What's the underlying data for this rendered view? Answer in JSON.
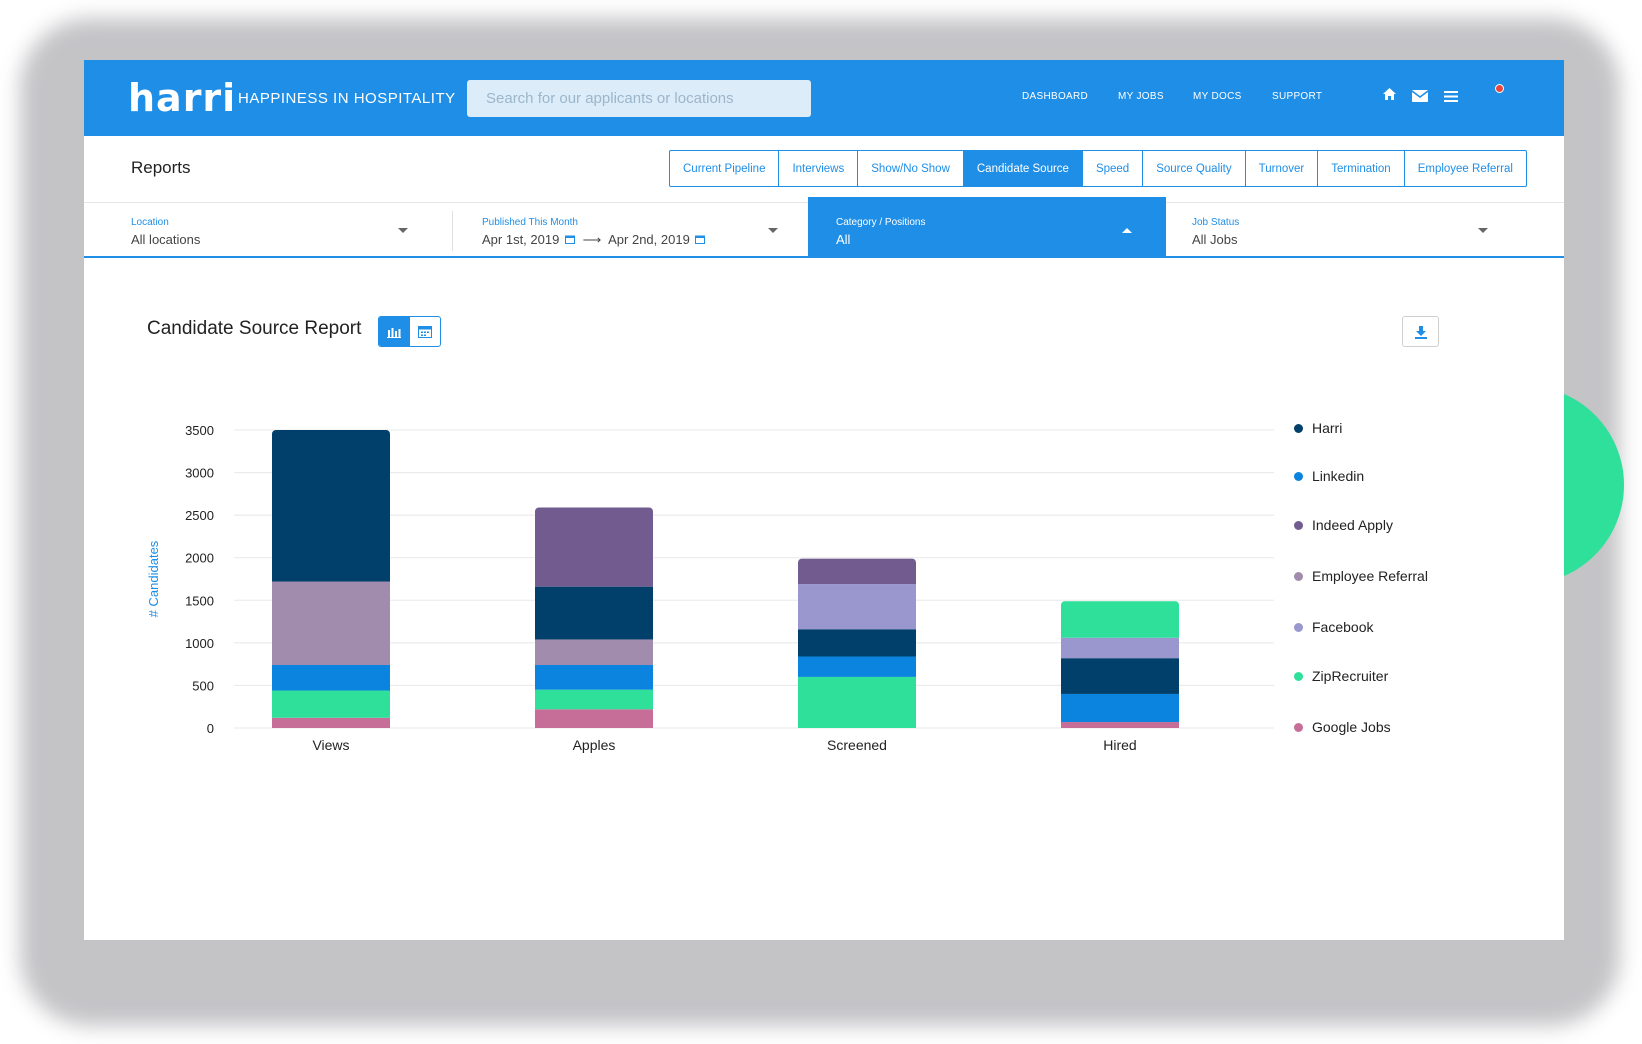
{
  "header": {
    "logo": "harri",
    "tagline": "HAPPINESS IN HOSPITALITY",
    "search_placeholder": "Search for our applicants or locations",
    "nav": [
      "DASHBOARD",
      "MY JOBS",
      "MY DOCS",
      "SUPPORT"
    ],
    "icons": [
      "home-icon",
      "mail-icon",
      "menu-icon"
    ]
  },
  "reports": {
    "title": "Reports",
    "tabs": [
      "Current Pipeline",
      "Interviews",
      "Show/No Show",
      "Candidate Source",
      "Speed",
      "Source Quality",
      "Turnover",
      "Termination",
      "Employee Referral"
    ],
    "active_tab": "Candidate Source"
  },
  "filters": {
    "location": {
      "label": "Location",
      "value": "All locations"
    },
    "date": {
      "label": "Published This Month",
      "from": "Apr 1st, 2019",
      "to": "Apr 2nd, 2019"
    },
    "category": {
      "label": "Category / Positions",
      "value": "All"
    },
    "job_status": {
      "label": "Job Status",
      "value": "All Jobs"
    }
  },
  "report": {
    "title": "Candidate Source Report"
  },
  "colors": {
    "accent": "#1f8ee6",
    "Harri": "#01406b",
    "Linkedin": "#0a84de",
    "Indeed Apply": "#715b8f",
    "Employee Referral": "#a18cad",
    "Facebook": "#9a97cf",
    "ZipRecruiter": "#2ee09a",
    "Google Jobs": "#c76e98"
  },
  "chart_data": {
    "type": "bar",
    "stacked": true,
    "categories": [
      "Views",
      "Apples",
      "Screened",
      "Hired"
    ],
    "ylabel": "# Candidates",
    "ylim": [
      0,
      3500
    ],
    "yticks": [
      0,
      500,
      1000,
      1500,
      2000,
      2500,
      3000,
      3500
    ],
    "grid": true,
    "legend_position": "right",
    "series": [
      {
        "name": "Google Jobs",
        "values": [
          120,
          220,
          0,
          70
        ]
      },
      {
        "name": "ZipRecruiter",
        "values": [
          320,
          230,
          600,
          0
        ]
      },
      {
        "name": "Linkedin",
        "values": [
          300,
          290,
          240,
          330
        ]
      },
      {
        "name": "Employee Referral",
        "values": [
          980,
          300,
          0,
          0
        ]
      },
      {
        "name": "Harri",
        "values": [
          1780,
          620,
          320,
          420
        ]
      },
      {
        "name": "Facebook",
        "values": [
          0,
          0,
          530,
          240
        ]
      },
      {
        "name": "Indeed Apply",
        "values": [
          0,
          930,
          300,
          0
        ]
      },
      {
        "name": "ZipRecruiter ",
        "values": [
          0,
          0,
          0,
          430
        ]
      }
    ],
    "legend": [
      "Harri",
      "Linkedin",
      "Indeed Apply",
      "Employee Referral",
      "Facebook",
      "ZipRecruiter",
      "Google Jobs"
    ]
  }
}
